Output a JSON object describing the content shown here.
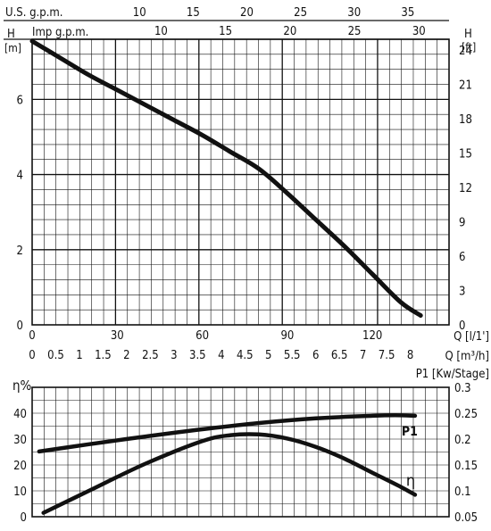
{
  "chart_data": [
    {
      "type": "line",
      "name_hint": "head-flow",
      "series": [
        {
          "name": "",
          "x": [
            0,
            10,
            20,
            30,
            40,
            50,
            60,
            70,
            80,
            90,
            100,
            110,
            120,
            130,
            137
          ],
          "values": [
            7.55,
            7.1,
            6.65,
            6.25,
            5.85,
            5.45,
            5.05,
            4.6,
            4.15,
            3.5,
            2.8,
            2.1,
            1.35,
            0.6,
            0.25
          ]
        }
      ],
      "x_primary": {
        "label": "Q [l/1']",
        "ticks": [
          "0",
          "30",
          "60",
          "90",
          "120"
        ],
        "range": [
          0,
          147
        ]
      },
      "x_m3h": {
        "label": "Q [m³/h]",
        "ticks": [
          "0",
          "0.5",
          "1",
          "1.5",
          "2",
          "2.5",
          "3",
          "3.5",
          "4",
          "4.5",
          "5",
          "5.5",
          "6",
          "6.5",
          "7",
          "7.5",
          "8"
        ]
      },
      "x_usgpm": {
        "label": "U.S. g.p.m.",
        "ticks": [
          "10",
          "15",
          "20",
          "25",
          "30",
          "35"
        ]
      },
      "x_impgpm": {
        "label": "Imp g.p.m.",
        "ticks": [
          "10",
          "15",
          "20",
          "25",
          "30"
        ]
      },
      "y_left": {
        "label_top": "H",
        "label_unit": "[m]",
        "ticks": [
          "0",
          "2",
          "4",
          "6"
        ],
        "range": [
          0,
          7.6
        ]
      },
      "y_right": {
        "label_top": "H",
        "label_unit": "[ft]",
        "ticks": [
          "0",
          "3",
          "6",
          "9",
          "12",
          "15",
          "18",
          "21",
          "24"
        ]
      }
    },
    {
      "type": "line",
      "name_hint": "efficiency-power",
      "series": [
        {
          "name": "P1",
          "axis": "right",
          "x": [
            2.5,
            20,
            40,
            60,
            80,
            100,
            120,
            128,
            135
          ],
          "values": [
            0.176,
            0.19,
            0.205,
            0.219,
            0.231,
            0.24,
            0.245,
            0.246,
            0.245
          ]
        },
        {
          "name": "η",
          "axis": "left",
          "x": [
            4,
            20,
            40,
            60,
            70,
            80,
            90,
            100,
            110,
            120,
            130,
            135
          ],
          "values": [
            1.5,
            10,
            20.5,
            29.2,
            31.5,
            31.8,
            30.2,
            27,
            22.5,
            17,
            11.5,
            8.5
          ]
        }
      ],
      "x_range": [
        0,
        147
      ],
      "y_left": {
        "label": "η%",
        "ticks": [
          "0",
          "10",
          "20",
          "30",
          "40"
        ],
        "range": [
          0,
          40
        ]
      },
      "y_right": {
        "label": "P1 [Kw/Stage]",
        "ticks": [
          "0.05",
          "0.1",
          "0.15",
          "0.2",
          "0.25",
          "0.3"
        ],
        "range": [
          0.05,
          0.3
        ]
      }
    }
  ]
}
